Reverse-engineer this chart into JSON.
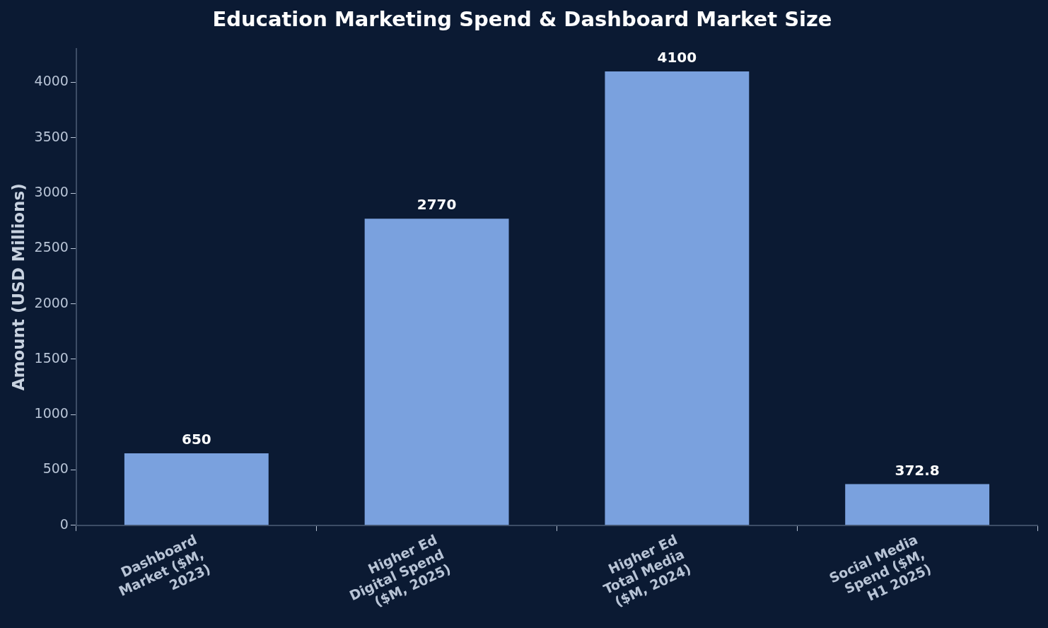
{
  "chart_data": {
    "type": "bar",
    "title": "Education Marketing Spend & Dashboard Market Size",
    "ylabel": "Amount (USD Millions)",
    "categories": [
      "Dashboard\nMarket ($M,\n2023)",
      "Higher Ed\nDigital Spend\n($M, 2025)",
      "Higher Ed\nTotal Media\n($M, 2024)",
      "Social Media\nSpend ($M,\nH1 2025)"
    ],
    "values": [
      650,
      2770,
      4100,
      372.8
    ],
    "color": "#7aa1de",
    "ylim": [
      0,
      4305
    ],
    "yticks": [
      0,
      500,
      1000,
      1500,
      2000,
      2500,
      3000,
      3500,
      4000
    ],
    "grid": false,
    "legend": false,
    "data_labels": true
  }
}
